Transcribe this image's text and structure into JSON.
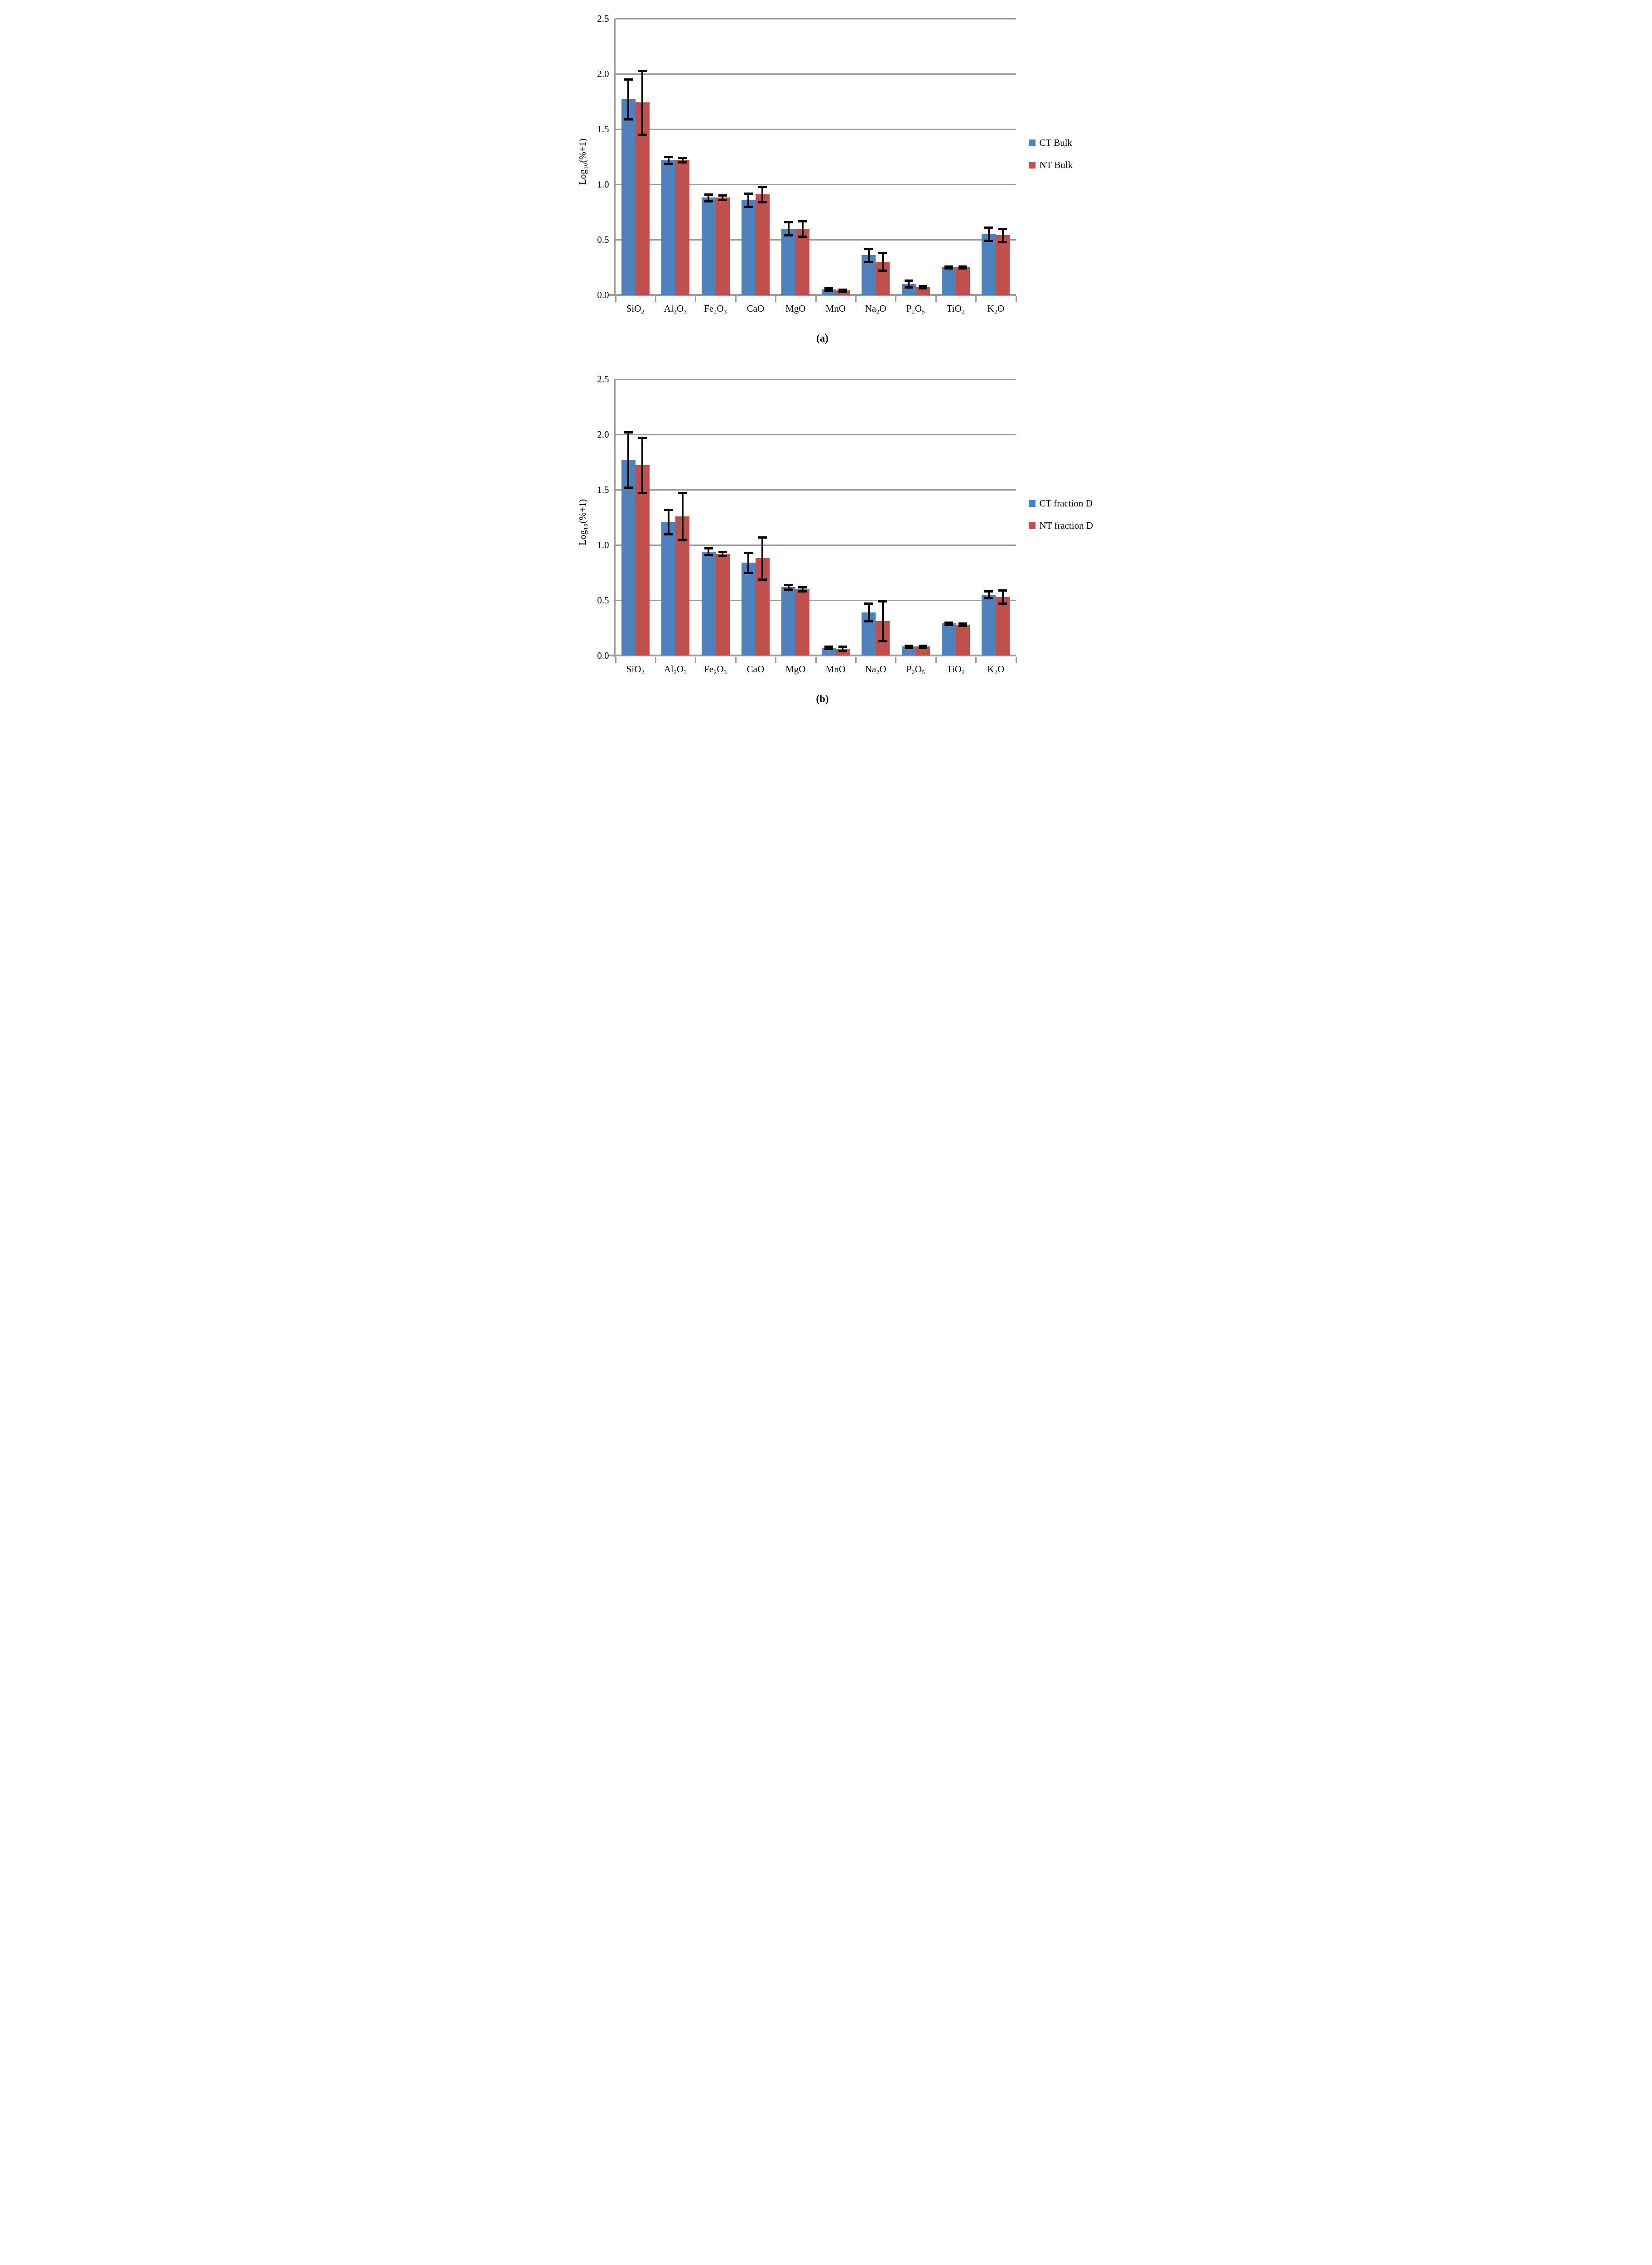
{
  "figure": {
    "background": "#ffffff",
    "text_color": "#000000",
    "grid_color": "#9c9c9c",
    "error_bar_color": "#000000"
  },
  "chart_data": [
    {
      "type": "bar",
      "caption": "(a)",
      "ylabel": "Log₁₀(%+1)",
      "xlabel": "",
      "ylim": [
        0,
        2.5
      ],
      "ytick_step": 0.5,
      "y_tick_labels": [
        "0.0",
        "0.5",
        "1.0",
        "1.5",
        "2.0",
        "2.5"
      ],
      "grid": true,
      "legend_position": "right",
      "categories": [
        "SiO₂",
        "Al₂O₃",
        "Fe₂O₃",
        "CaO",
        "MgO",
        "MnO",
        "Na₂O",
        "P₂O₅",
        "TiO₂",
        "K₂O"
      ],
      "series": [
        {
          "name": "CT Bulk",
          "color": "#4F81BD",
          "values": [
            1.77,
            1.22,
            0.88,
            0.86,
            0.6,
            0.05,
            0.36,
            0.1,
            0.25,
            0.55
          ],
          "errors": [
            0.18,
            0.03,
            0.03,
            0.06,
            0.06,
            0.01,
            0.06,
            0.03,
            0.01,
            0.06
          ]
        },
        {
          "name": "NT Bulk",
          "color": "#C0504D",
          "values": [
            1.74,
            1.22,
            0.88,
            0.91,
            0.6,
            0.04,
            0.3,
            0.07,
            0.25,
            0.54
          ],
          "errors": [
            0.29,
            0.02,
            0.02,
            0.07,
            0.07,
            0.01,
            0.08,
            0.01,
            0.01,
            0.06
          ]
        }
      ]
    },
    {
      "type": "bar",
      "caption": "(b)",
      "ylabel": "Log₁₀(%+1)",
      "xlabel": "",
      "ylim": [
        0,
        2.5
      ],
      "ytick_step": 0.5,
      "y_tick_labels": [
        "0.0",
        "0.5",
        "1.0",
        "1.5",
        "2.0",
        "2.5"
      ],
      "grid": true,
      "legend_position": "right",
      "categories": [
        "SiO₂",
        "Al₂O₃",
        "Fe₂O₃",
        "CaO",
        "MgO",
        "MnO",
        "Na₂O",
        "P₂O₅",
        "TiO₂",
        "K₂O"
      ],
      "series": [
        {
          "name": "CT fraction D",
          "color": "#4F81BD",
          "values": [
            1.77,
            1.21,
            0.94,
            0.84,
            0.62,
            0.07,
            0.39,
            0.08,
            0.29,
            0.55
          ],
          "errors": [
            0.25,
            0.11,
            0.03,
            0.09,
            0.02,
            0.01,
            0.08,
            0.01,
            0.01,
            0.03
          ]
        },
        {
          "name": "NT fraction D",
          "color": "#C0504D",
          "values": [
            1.72,
            1.26,
            0.92,
            0.88,
            0.6,
            0.06,
            0.31,
            0.08,
            0.28,
            0.53
          ],
          "errors": [
            0.25,
            0.21,
            0.02,
            0.19,
            0.02,
            0.02,
            0.18,
            0.01,
            0.01,
            0.06
          ]
        }
      ]
    }
  ]
}
